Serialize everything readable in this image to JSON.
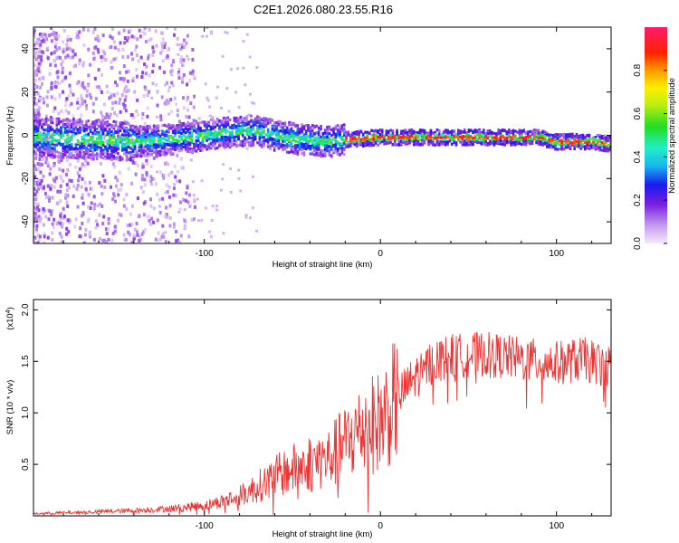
{
  "title": "C2E1.2026.080.23.55.R16",
  "top_panel": {
    "xlabel": "Height of straight line (km)",
    "ylabel": "Frequency (Hz)",
    "colorbar_label": "Normalized spectral amplitude",
    "xlim": [
      -197,
      131
    ],
    "ylim": [
      -50,
      50
    ],
    "xticks": [
      -100,
      0,
      100
    ],
    "yticks": [
      -40,
      -20,
      0,
      20,
      40
    ],
    "colorbar_ticks": [
      0.0,
      0.2,
      0.4,
      0.6,
      0.8
    ]
  },
  "bottom_panel": {
    "xlabel": "Height of straight line (km)",
    "ylabel": "SNR (10 * v/v)",
    "scale_label": "(x10",
    "scale_exponent": "4",
    "scale_close": ")",
    "xlim": [
      -197,
      131
    ],
    "ylim": [
      0,
      2.1
    ],
    "xticks": [
      -100,
      0,
      100
    ],
    "yticks": [
      0.5,
      1.0,
      1.5,
      2.0
    ]
  },
  "chart_data": [
    {
      "type": "heatmap",
      "title": "C2E1.2026.080.23.55.R16",
      "xlabel": "Height of straight line (km)",
      "ylabel": "Frequency (Hz)",
      "xlim": [
        -197,
        131
      ],
      "ylim": [
        -50,
        50
      ],
      "colorbar": {
        "label": "Normalized spectral amplitude",
        "range": [
          0,
          1
        ],
        "ticks": [
          0.0,
          0.2,
          0.4,
          0.6,
          0.8
        ]
      },
      "ridge_center_hz": [
        {
          "x": -190,
          "y": -1
        },
        {
          "x": -160,
          "y": -2
        },
        {
          "x": -140,
          "y": -3
        },
        {
          "x": -120,
          "y": -2
        },
        {
          "x": -100,
          "y": 0
        },
        {
          "x": -80,
          "y": 2
        },
        {
          "x": -70,
          "y": 2
        },
        {
          "x": -60,
          "y": 0
        },
        {
          "x": -45,
          "y": -2
        },
        {
          "x": -30,
          "y": -3
        },
        {
          "x": -20,
          "y": -2
        },
        {
          "x": 0,
          "y": -1
        },
        {
          "x": 50,
          "y": -1
        },
        {
          "x": 90,
          "y": -1
        },
        {
          "x": 100,
          "y": -3
        },
        {
          "x": 120,
          "y": -3
        },
        {
          "x": 130,
          "y": -4
        }
      ]
    },
    {
      "type": "line",
      "xlabel": "Height of straight line (km)",
      "ylabel": "SNR (10 * v/v)",
      "y_multiplier": 10000,
      "xlim": [
        -197,
        131
      ],
      "ylim": [
        0,
        2.1
      ],
      "series": [
        {
          "name": "SNR",
          "color": "#ee3333",
          "x": [
            -197,
            -180,
            -160,
            -140,
            -120,
            -100,
            -90,
            -80,
            -70,
            -60,
            -50,
            -40,
            -30,
            -20,
            -10,
            0,
            10,
            20,
            30,
            40,
            60,
            80,
            100,
            115,
            131
          ],
          "y": [
            0.02,
            0.03,
            0.04,
            0.05,
            0.07,
            0.1,
            0.14,
            0.19,
            0.28,
            0.38,
            0.45,
            0.52,
            0.55,
            0.7,
            0.85,
            0.92,
            1.15,
            1.35,
            1.5,
            1.55,
            1.57,
            1.52,
            1.48,
            1.52,
            1.45
          ]
        }
      ]
    }
  ]
}
